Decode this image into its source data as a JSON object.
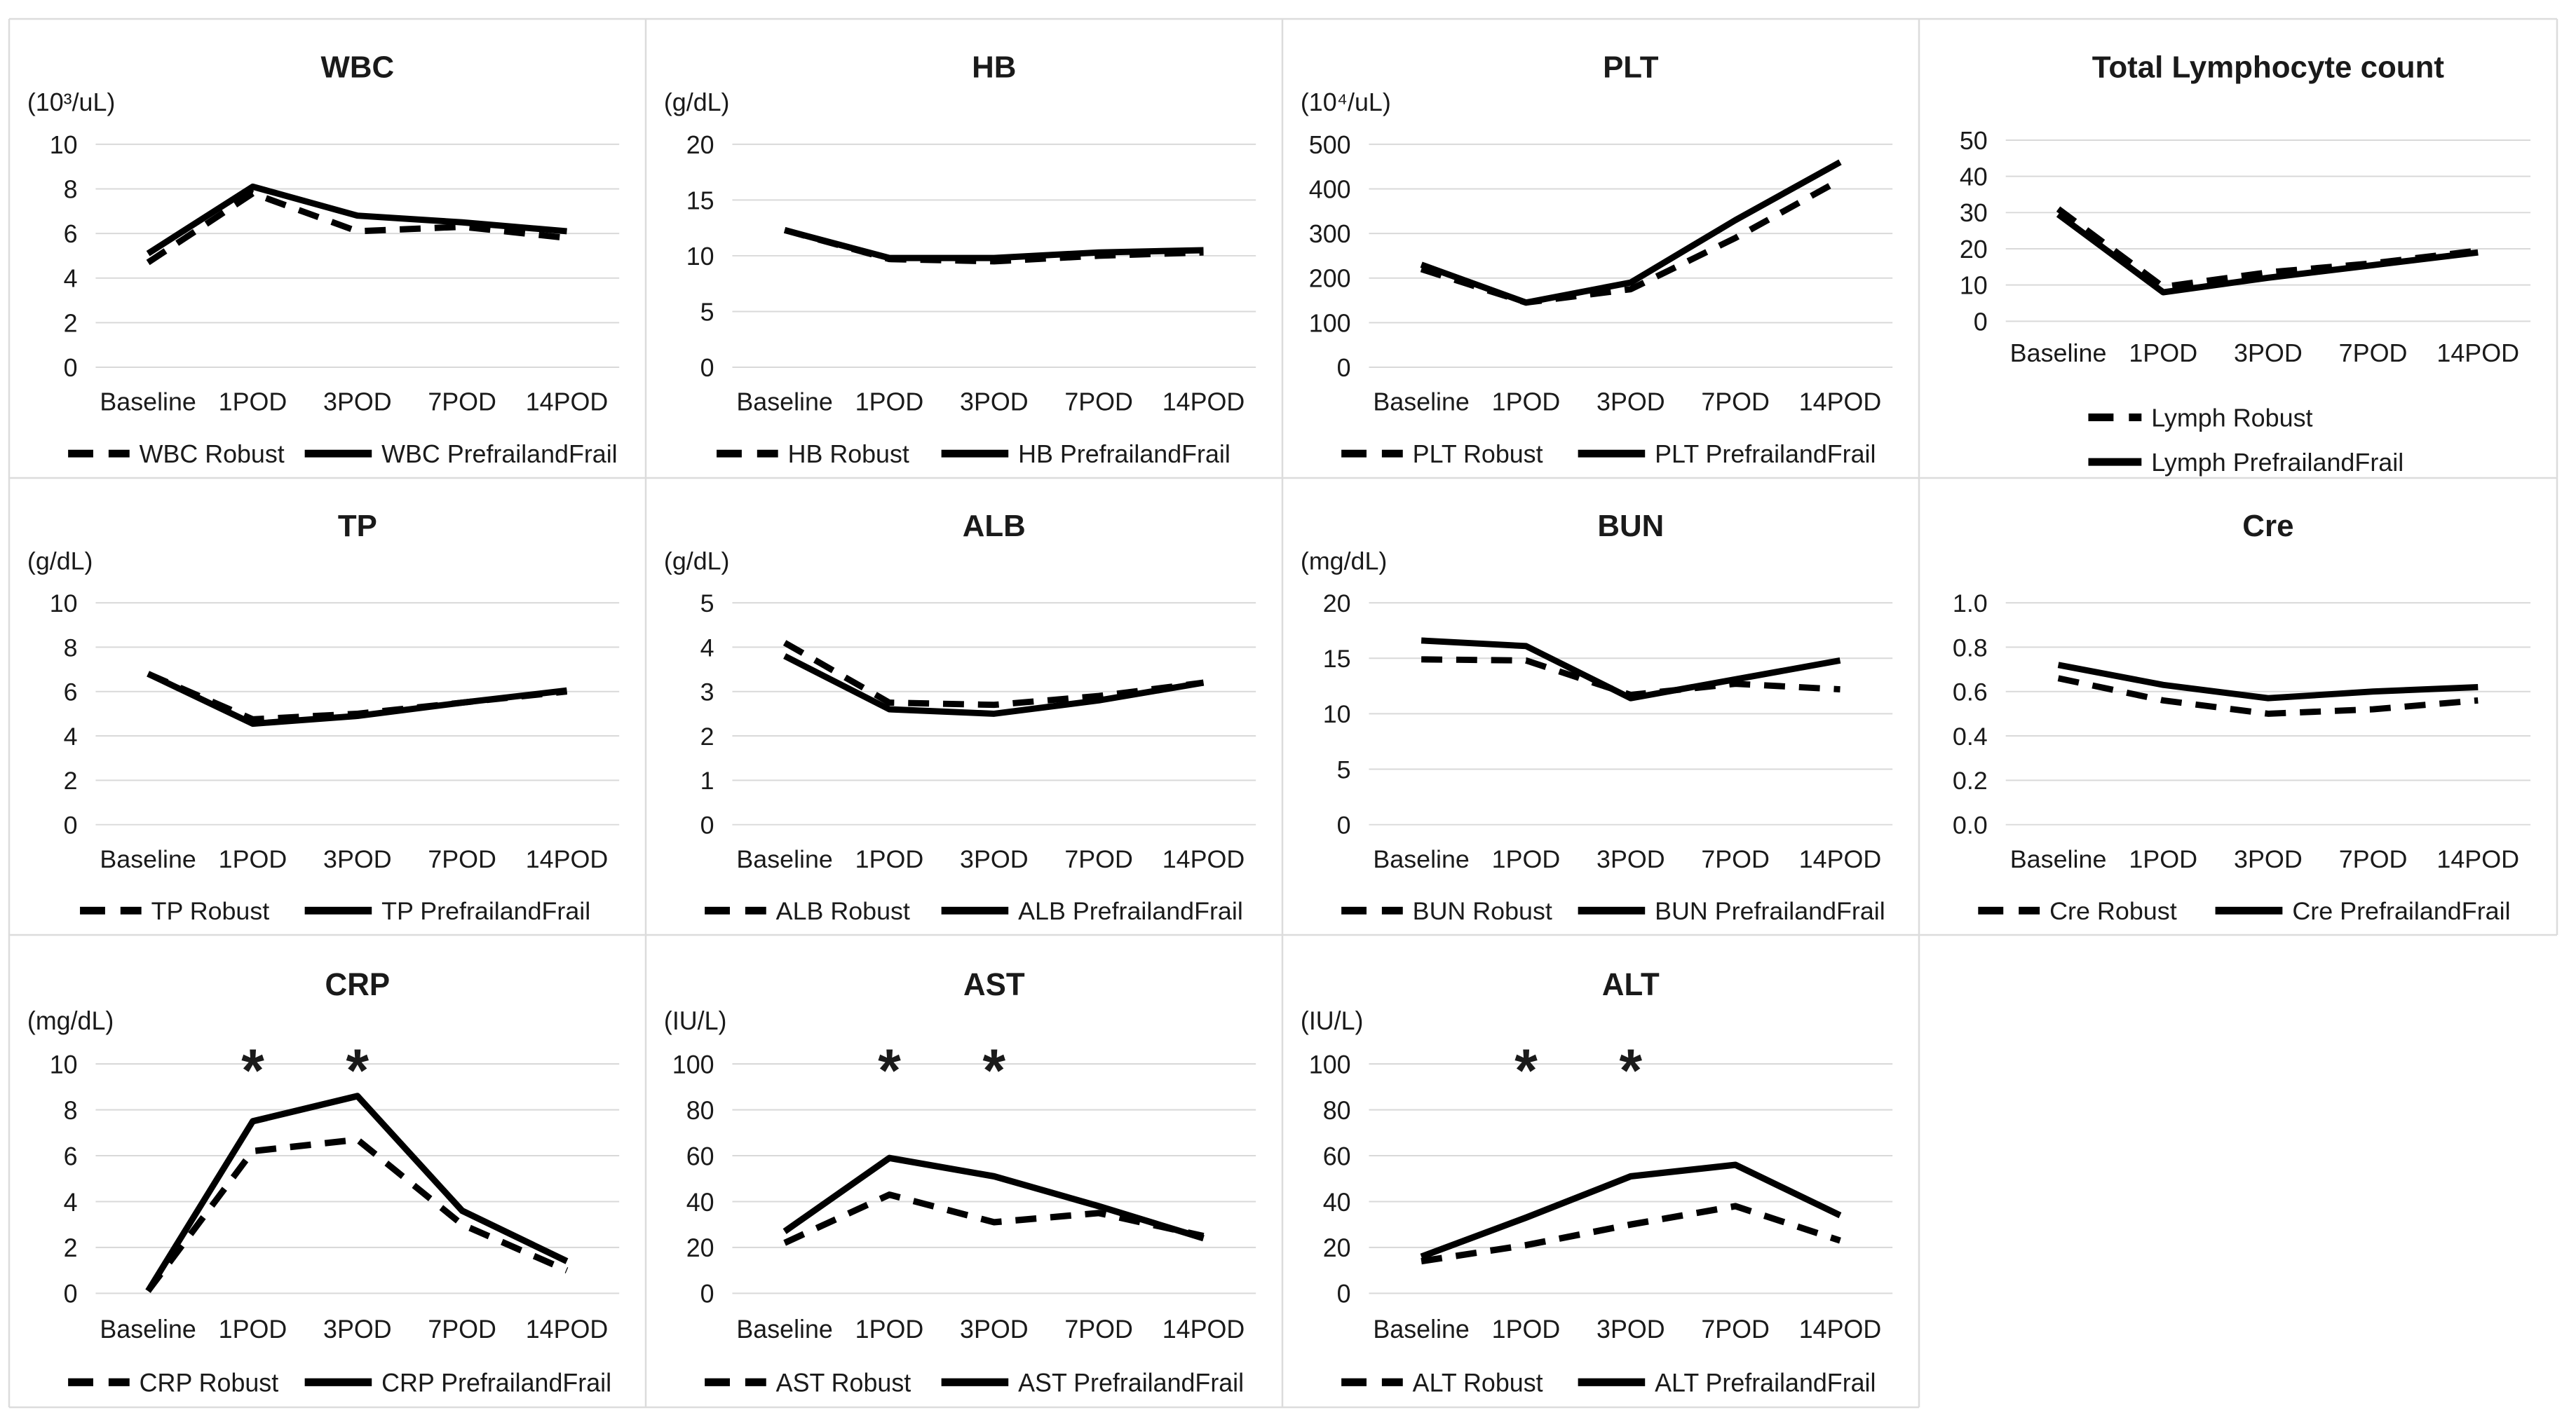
{
  "figure": {
    "background": "#ffffff",
    "cell_border_color": "#dcdcdc",
    "grid_color": "#d9d9d9",
    "line_color": "#000000",
    "text_color": "#1a1a1a",
    "asterisk_symbol": "*"
  },
  "x_categories": [
    "Baseline",
    "1POD",
    "3POD",
    "7POD",
    "14POD"
  ],
  "chart_data": [
    {
      "id": "wbc",
      "type": "line",
      "title": "WBC",
      "unit": "(10³/uL)",
      "row": 0,
      "col": 0,
      "y_ticks": [
        "10",
        "8",
        "6",
        "4",
        "2",
        "0"
      ],
      "ylim": [
        0,
        10
      ],
      "grid": true,
      "legend_layout": "row",
      "asterisk_categories": [],
      "series": [
        {
          "name": "WBC Robust",
          "style": "dashed",
          "values": [
            4.7,
            7.8,
            6.1,
            6.3,
            5.8
          ]
        },
        {
          "name": "WBC PrefrailandFrail",
          "style": "solid",
          "values": [
            5.1,
            8.1,
            6.8,
            6.5,
            6.1
          ]
        }
      ]
    },
    {
      "id": "hb",
      "type": "line",
      "title": "HB",
      "unit": "(g/dL)",
      "row": 0,
      "col": 1,
      "y_ticks": [
        "20",
        "15",
        "10",
        "5",
        "0"
      ],
      "ylim": [
        0,
        20
      ],
      "grid": true,
      "legend_layout": "row",
      "asterisk_categories": [],
      "series": [
        {
          "name": "HB Robust",
          "style": "dashed",
          "values": [
            12.3,
            9.7,
            9.5,
            10.0,
            10.3
          ]
        },
        {
          "name": "HB PrefrailandFrail",
          "style": "solid",
          "values": [
            12.3,
            9.8,
            9.8,
            10.3,
            10.5
          ]
        }
      ]
    },
    {
      "id": "plt",
      "type": "line",
      "title": "PLT",
      "unit": "(10⁴/uL)",
      "row": 0,
      "col": 2,
      "y_ticks": [
        "500",
        "400",
        "300",
        "200",
        "100",
        "0"
      ],
      "ylim": [
        0,
        500
      ],
      "grid": true,
      "legend_layout": "row",
      "asterisk_categories": [],
      "series": [
        {
          "name": "PLT Robust",
          "style": "dashed",
          "values": [
            220,
            145,
            175,
            290,
            420
          ]
        },
        {
          "name": "PLT PrefrailandFrail",
          "style": "solid",
          "values": [
            230,
            145,
            190,
            330,
            460
          ]
        }
      ]
    },
    {
      "id": "lymph",
      "type": "line",
      "title": "Total Lymphocyte count",
      "unit": null,
      "row": 0,
      "col": 3,
      "y_ticks": [
        "50",
        "40",
        "30",
        "20",
        "10",
        "0"
      ],
      "ylim": [
        0,
        50
      ],
      "grid": true,
      "legend_layout": "stack",
      "asterisk_categories": [],
      "series": [
        {
          "name": "Lymph Robust",
          "style": "dashed",
          "values": [
            31,
            9.5,
            13.5,
            16,
            19.5
          ]
        },
        {
          "name": "Lymph PrefrailandFrail",
          "style": "solid",
          "values": [
            29.5,
            8,
            12,
            15.5,
            19
          ]
        }
      ]
    },
    {
      "id": "tp",
      "type": "line",
      "title": "TP",
      "unit": "(g/dL)",
      "row": 1,
      "col": 0,
      "y_ticks": [
        "10",
        "8",
        "6",
        "4",
        "2",
        "0"
      ],
      "ylim": [
        0,
        10
      ],
      "grid": true,
      "legend_layout": "row",
      "asterisk_categories": [],
      "series": [
        {
          "name": "TP Robust",
          "style": "dashed",
          "values": [
            6.8,
            4.75,
            5.0,
            5.5,
            6.0
          ]
        },
        {
          "name": "TP PrefrailandFrail",
          "style": "solid",
          "values": [
            6.8,
            4.55,
            4.9,
            5.5,
            6.05
          ]
        }
      ]
    },
    {
      "id": "alb",
      "type": "line",
      "title": "ALB",
      "unit": "(g/dL)",
      "row": 1,
      "col": 1,
      "y_ticks": [
        "5",
        "4",
        "3",
        "2",
        "1",
        "0"
      ],
      "ylim": [
        0,
        5
      ],
      "grid": true,
      "legend_layout": "row",
      "asterisk_categories": [],
      "series": [
        {
          "name": "ALB Robust",
          "style": "dashed",
          "values": [
            4.1,
            2.75,
            2.7,
            2.9,
            3.2
          ]
        },
        {
          "name": "ALB PrefrailandFrail",
          "style": "solid",
          "values": [
            3.8,
            2.6,
            2.5,
            2.8,
            3.2
          ]
        }
      ]
    },
    {
      "id": "bun",
      "type": "line",
      "title": "BUN",
      "unit": "(mg/dL)",
      "row": 1,
      "col": 2,
      "y_ticks": [
        "20",
        "15",
        "10",
        "5",
        "0"
      ],
      "ylim": [
        0,
        20
      ],
      "grid": true,
      "legend_layout": "row",
      "asterisk_categories": [],
      "series": [
        {
          "name": "BUN Robust",
          "style": "dashed",
          "values": [
            14.9,
            14.8,
            11.7,
            12.7,
            12.2
          ]
        },
        {
          "name": "BUN PrefrailandFrail",
          "style": "solid",
          "values": [
            16.6,
            16.1,
            11.4,
            13.1,
            14.8
          ]
        }
      ]
    },
    {
      "id": "cre",
      "type": "line",
      "title": "Cre",
      "unit": null,
      "row": 1,
      "col": 3,
      "y_ticks": [
        "1.0",
        "0.8",
        "0.6",
        "0.4",
        "0.2",
        "0.0"
      ],
      "ylim": [
        0,
        1.0
      ],
      "grid": true,
      "legend_layout": "row",
      "asterisk_categories": [],
      "series": [
        {
          "name": "Cre Robust",
          "style": "dashed",
          "values": [
            0.66,
            0.56,
            0.5,
            0.52,
            0.56
          ]
        },
        {
          "name": "Cre PrefrailandFrail",
          "style": "solid",
          "values": [
            0.72,
            0.63,
            0.57,
            0.6,
            0.62
          ]
        }
      ]
    },
    {
      "id": "crp",
      "type": "line",
      "title": "CRP",
      "unit": "(mg/dL)",
      "row": 2,
      "col": 0,
      "y_ticks": [
        "10",
        "8",
        "6",
        "4",
        "2",
        "0"
      ],
      "ylim": [
        0,
        10
      ],
      "grid": true,
      "legend_layout": "row",
      "asterisk_categories": [
        "1POD",
        "3POD"
      ],
      "series": [
        {
          "name": "CRP Robust",
          "style": "dashed",
          "values": [
            0.1,
            6.2,
            6.7,
            3.0,
            1.0
          ]
        },
        {
          "name": "CRP PrefrailandFrail",
          "style": "solid",
          "values": [
            0.1,
            7.5,
            8.6,
            3.6,
            1.4
          ]
        }
      ]
    },
    {
      "id": "ast",
      "type": "line",
      "title": "AST",
      "unit": "(IU/L)",
      "row": 2,
      "col": 1,
      "y_ticks": [
        "100",
        "80",
        "60",
        "40",
        "20",
        "0"
      ],
      "ylim": [
        0,
        100
      ],
      "grid": true,
      "legend_layout": "row",
      "asterisk_categories": [
        "1POD",
        "3POD"
      ],
      "series": [
        {
          "name": "AST Robust",
          "style": "dashed",
          "values": [
            22,
            43,
            31,
            35,
            25
          ]
        },
        {
          "name": "AST PrefrailandFrail",
          "style": "solid",
          "values": [
            27,
            59,
            51,
            38,
            24
          ]
        }
      ]
    },
    {
      "id": "alt",
      "type": "line",
      "title": "ALT",
      "unit": "(IU/L)",
      "row": 2,
      "col": 2,
      "y_ticks": [
        "100",
        "80",
        "60",
        "40",
        "20",
        "0"
      ],
      "ylim": [
        0,
        100
      ],
      "grid": true,
      "legend_layout": "row",
      "asterisk_categories": [
        "1POD",
        "3POD"
      ],
      "series": [
        {
          "name": "ALT Robust",
          "style": "dashed",
          "values": [
            14,
            21,
            30,
            38,
            23
          ]
        },
        {
          "name": "ALT PrefrailandFrail",
          "style": "solid",
          "values": [
            16,
            33,
            51,
            56,
            34
          ]
        }
      ]
    }
  ]
}
